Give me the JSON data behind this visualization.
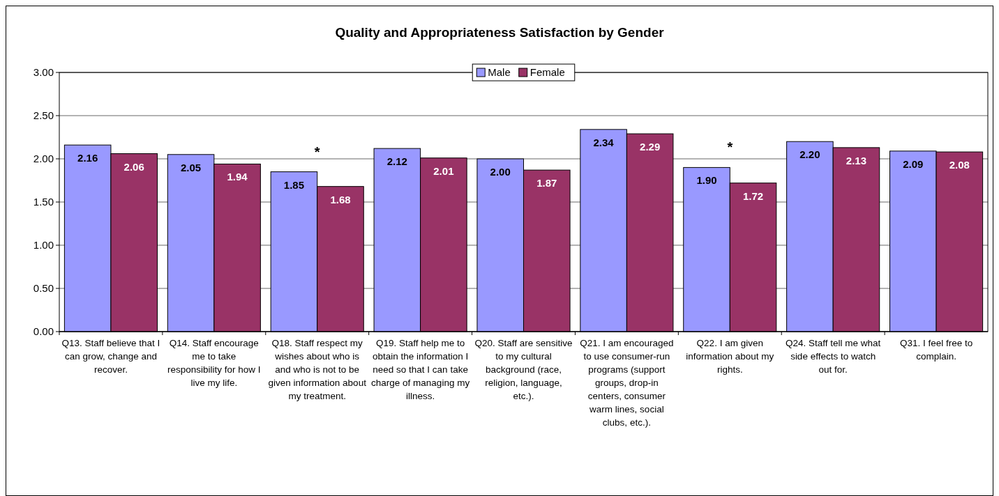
{
  "chart_data": {
    "type": "bar",
    "title": "Quality and Appropriateness Satisfaction by Gender",
    "categories": [
      "Q13. Staff believe that I can grow, change and recover.",
      "Q14. Staff encourage me to take responsibility for how I live my life.",
      "Q18. Staff respect my wishes about who is and who is not to be given information about my treatment.",
      "Q19. Staff help me to obtain the information I need so that I can take charge of managing my illness.",
      "Q20. Staff are sensitive to my cultural background (race, religion, language, etc.).",
      "Q21. I am encouraged to use consumer-run programs (support groups, drop-in centers, consumer warm lines, social clubs, etc.).",
      "Q22. I am given information about my rights.",
      "Q24. Staff tell me what side effects to watch out for.",
      "Q31. I feel free to complain."
    ],
    "series": [
      {
        "name": "Male",
        "color": "#9999ff",
        "values": [
          2.16,
          2.05,
          1.85,
          2.12,
          2.0,
          2.34,
          1.9,
          2.2,
          2.09
        ],
        "value_labels": [
          "2.16",
          "2.05",
          "1.85",
          "2.12",
          "2.00",
          "2.34",
          "1.90",
          "2.20",
          "2.09"
        ]
      },
      {
        "name": "Female",
        "color": "#993366",
        "values": [
          2.06,
          1.94,
          1.68,
          2.01,
          1.87,
          2.29,
          1.72,
          2.13,
          2.08
        ],
        "value_labels": [
          "2.06",
          "1.94",
          "1.68",
          "2.01",
          "1.87",
          "2.29",
          "1.72",
          "2.13",
          "2.08"
        ]
      }
    ],
    "ylim": [
      0,
      3
    ],
    "yticks": [
      {
        "value": 0,
        "label": "0.00"
      },
      {
        "value": 0.5,
        "label": "0.50"
      },
      {
        "value": 1,
        "label": "1.00"
      },
      {
        "value": 1.5,
        "label": "1.50"
      },
      {
        "value": 2,
        "label": "2.00"
      },
      {
        "value": 2.5,
        "label": "2.50"
      },
      {
        "value": 3,
        "label": "3.00"
      }
    ],
    "grid": "y",
    "legend": "top",
    "annotations": [
      {
        "text": "*",
        "x": "Q18. Staff respect my wishes about who is and who is not to be given information about my treatment.",
        "y": 1.85
      },
      {
        "text": "*",
        "x": "Q22. I am given information about my rights.",
        "y": 1.9
      }
    ]
  }
}
